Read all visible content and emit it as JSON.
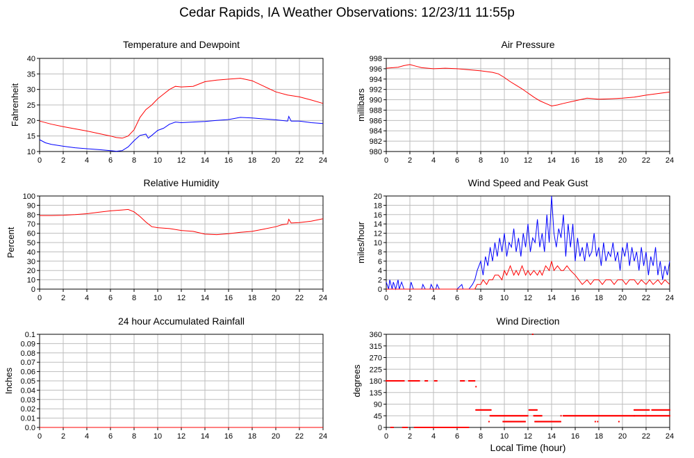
{
  "page": {
    "title": "Cedar Rapids, IA Weather Observations: 12/23/11 11:55p",
    "xlabel_shared": "Local Time (hour)"
  },
  "colors": {
    "red": "#ff0000",
    "blue": "#0000ff",
    "grid": "#bdbdbd",
    "axis": "#000000"
  },
  "chart_data": [
    {
      "id": "temp",
      "type": "line",
      "title": "Temperature and Dewpoint",
      "xlabel": "",
      "ylabel": "Fahrenheit",
      "xlim": [
        0,
        24
      ],
      "ylim": [
        10,
        40
      ],
      "xticks": [
        "0",
        "2",
        "4",
        "6",
        "8",
        "10",
        "12",
        "14",
        "16",
        "18",
        "20",
        "22",
        "24"
      ],
      "yticks": [
        "10",
        "15",
        "20",
        "25",
        "30",
        "35",
        "40"
      ],
      "series": [
        {
          "color": "#ff0000",
          "x": [
            0,
            1,
            2,
            3,
            4,
            5,
            6,
            6.5,
            7,
            7.5,
            8,
            8.5,
            9,
            9.5,
            10,
            10.5,
            11,
            11.5,
            12,
            13,
            14,
            15,
            16,
            17,
            17.5,
            18,
            19,
            20,
            21,
            22,
            23,
            24
          ],
          "y": [
            19.8,
            18.8,
            18,
            17.3,
            16.6,
            15.8,
            15,
            14.5,
            14.3,
            15,
            17,
            21,
            23.5,
            25,
            27,
            28.5,
            30,
            31,
            30.8,
            31,
            32.5,
            33,
            33.3,
            33.6,
            33.2,
            32.8,
            31,
            29.2,
            28.2,
            27.6,
            26.6,
            25.5
          ]
        },
        {
          "color": "#0000ff",
          "x": [
            0,
            0.5,
            1,
            2,
            3,
            4,
            5,
            6,
            6.5,
            7,
            7.5,
            8,
            8.5,
            9,
            9.2,
            9.5,
            10,
            10.5,
            11,
            11.5,
            12,
            13,
            14,
            15,
            16,
            17,
            18,
            19,
            20,
            21,
            21.1,
            21.3,
            22,
            23,
            24
          ],
          "y": [
            13.8,
            12.8,
            12.3,
            11.7,
            11.2,
            10.9,
            10.6,
            10.3,
            10.1,
            10.3,
            11.5,
            13.5,
            15.2,
            15.6,
            14.3,
            15.2,
            16.8,
            17.5,
            18.8,
            19.5,
            19.3,
            19.5,
            19.7,
            20,
            20.3,
            21,
            20.8,
            20.5,
            20.2,
            19.8,
            21.3,
            19.8,
            19.8,
            19.3,
            19
          ]
        }
      ]
    },
    {
      "id": "pressure",
      "type": "line",
      "title": "Air Pressure",
      "xlabel": "",
      "ylabel": "millibars",
      "xlim": [
        0,
        24
      ],
      "ylim": [
        980,
        998
      ],
      "xticks": [
        "0",
        "2",
        "4",
        "6",
        "8",
        "10",
        "12",
        "14",
        "16",
        "18",
        "20",
        "22",
        "24"
      ],
      "yticks": [
        "980",
        "982",
        "984",
        "986",
        "988",
        "990",
        "992",
        "994",
        "996",
        "998"
      ],
      "series": [
        {
          "color": "#ff0000",
          "x": [
            0,
            1,
            1.5,
            2,
            2.5,
            3,
            4,
            5,
            6,
            7,
            8,
            9,
            9.5,
            10,
            10.5,
            11,
            11.5,
            12,
            12.5,
            13,
            13.5,
            14,
            14.5,
            15,
            16,
            17,
            18,
            19,
            20,
            21,
            22,
            23,
            24
          ],
          "y": [
            996.1,
            996.3,
            996.6,
            996.8,
            996.5,
            996.2,
            996,
            996.1,
            996,
            995.8,
            995.6,
            995.3,
            995,
            994.3,
            993.5,
            992.8,
            992.1,
            991.3,
            990.5,
            989.8,
            989.3,
            988.8,
            989,
            989.3,
            989.8,
            990.3,
            990.1,
            990.2,
            990.3,
            990.5,
            990.9,
            991.2,
            991.5
          ]
        }
      ]
    },
    {
      "id": "rh",
      "type": "line",
      "title": "Relative Humidity",
      "xlabel": "",
      "ylabel": "Percent",
      "xlim": [
        0,
        24
      ],
      "ylim": [
        0,
        100
      ],
      "xticks": [
        "0",
        "2",
        "4",
        "6",
        "8",
        "10",
        "12",
        "14",
        "16",
        "18",
        "20",
        "22",
        "24"
      ],
      "yticks": [
        "0",
        "10",
        "20",
        "30",
        "40",
        "50",
        "60",
        "70",
        "80",
        "90",
        "100"
      ],
      "series": [
        {
          "color": "#ff0000",
          "x": [
            0,
            1,
            2,
            3,
            4,
            5,
            6,
            7,
            7.5,
            8,
            8.5,
            9,
            9.5,
            10,
            11,
            12,
            13,
            14,
            15,
            16,
            17,
            18,
            19,
            20,
            20.5,
            21,
            21.1,
            21.3,
            22,
            23,
            24
          ],
          "y": [
            79,
            79,
            79.3,
            80,
            81,
            82.5,
            84,
            85,
            85.5,
            83,
            78,
            72,
            67,
            66,
            65,
            63,
            62,
            59,
            58.5,
            59.5,
            61,
            62,
            64.5,
            67,
            69,
            70,
            75,
            71,
            71.5,
            73,
            75.5
          ]
        }
      ]
    },
    {
      "id": "wind",
      "type": "line",
      "title": "Wind Speed and Peak Gust",
      "xlabel": "",
      "ylabel": "miles/hour",
      "xlim": [
        0,
        24
      ],
      "ylim": [
        0,
        20
      ],
      "xticks": [
        "0",
        "2",
        "4",
        "6",
        "8",
        "10",
        "12",
        "14",
        "16",
        "18",
        "20",
        "22",
        "24"
      ],
      "yticks": [
        "0",
        "2",
        "4",
        "6",
        "8",
        "10",
        "12",
        "14",
        "16",
        "18",
        "20"
      ],
      "series": [
        {
          "color": "#0000ff",
          "x": [
            0,
            0.2,
            0.3,
            0.5,
            0.6,
            0.8,
            1,
            1.1,
            1.3,
            1.5,
            2,
            2.1,
            2.3,
            3,
            3.1,
            3.3,
            3.7,
            3.8,
            4,
            4.2,
            4.3,
            4.5,
            5,
            6,
            6.4,
            6.5,
            6.7,
            7,
            7.3,
            7.5,
            7.7,
            8,
            8.2,
            8.4,
            8.6,
            8.8,
            9,
            9.2,
            9.4,
            9.6,
            9.8,
            10,
            10.2,
            10.4,
            10.6,
            10.8,
            11,
            11.2,
            11.4,
            11.6,
            11.8,
            12,
            12.2,
            12.4,
            12.6,
            12.8,
            13,
            13.2,
            13.4,
            13.6,
            13.8,
            14,
            14.2,
            14.4,
            14.6,
            14.8,
            15,
            15.2,
            15.4,
            15.6,
            15.8,
            16,
            16.2,
            16.4,
            16.6,
            16.8,
            17,
            17.2,
            17.4,
            17.6,
            17.8,
            18,
            18.2,
            18.4,
            18.6,
            18.8,
            19,
            19.2,
            19.4,
            19.6,
            19.8,
            20,
            20.2,
            20.4,
            20.6,
            20.8,
            21,
            21.2,
            21.4,
            21.6,
            21.8,
            22,
            22.2,
            22.4,
            22.6,
            22.8,
            23,
            23.2,
            23.4,
            23.6,
            23.8,
            24
          ],
          "y": [
            1.5,
            0,
            2,
            0,
            1.5,
            0,
            2,
            0,
            1.5,
            0,
            0,
            1.5,
            0,
            0,
            1,
            0,
            0,
            1,
            0,
            0,
            1,
            0,
            0,
            0,
            1,
            0,
            0,
            0,
            1,
            2,
            4,
            6,
            3,
            7,
            5,
            9,
            6,
            10,
            7,
            11,
            8,
            12,
            7,
            10,
            9,
            13,
            8,
            11,
            7,
            12,
            9,
            14,
            8,
            11,
            10,
            15,
            9,
            12,
            8,
            16,
            10,
            20,
            12,
            9,
            13,
            11,
            16,
            7,
            14,
            9,
            14,
            6,
            11,
            7,
            9,
            6,
            10,
            7,
            8,
            12,
            7,
            9,
            5,
            10,
            6,
            8,
            7,
            10,
            6,
            8,
            4,
            9,
            7,
            10,
            5,
            9,
            6,
            8,
            4,
            9,
            5,
            8,
            3,
            7,
            5,
            9,
            3,
            6,
            2,
            5,
            3,
            6
          ]
        },
        {
          "color": "#ff0000",
          "x": [
            0,
            7.5,
            7.7,
            8,
            8.2,
            8.5,
            8.7,
            9,
            9.2,
            9.5,
            9.8,
            10,
            10.2,
            10.5,
            10.8,
            11,
            11.2,
            11.5,
            11.8,
            12,
            12.2,
            12.5,
            12.8,
            13,
            13.2,
            13.5,
            13.8,
            14,
            14.2,
            14.5,
            14.8,
            15,
            15.3,
            15.6,
            16,
            16.3,
            16.6,
            17,
            17.3,
            17.6,
            18,
            18.3,
            18.6,
            19,
            19.3,
            19.6,
            20,
            20.3,
            20.6,
            21,
            21.3,
            21.6,
            22,
            22.3,
            22.6,
            23,
            23.3,
            23.6,
            24
          ],
          "y": [
            0,
            0,
            1,
            1,
            2,
            1,
            2,
            2,
            3,
            3,
            2,
            4,
            3,
            5,
            3,
            4,
            3,
            5,
            3,
            4,
            3,
            4,
            3,
            4,
            3,
            5,
            4,
            6,
            4,
            5,
            4,
            4,
            5,
            4,
            3,
            2,
            1,
            2,
            1,
            2,
            2,
            1,
            2,
            2,
            1,
            2,
            2,
            1,
            2,
            2,
            1,
            2,
            1,
            2,
            1,
            2,
            1,
            2,
            1
          ]
        }
      ]
    },
    {
      "id": "rain",
      "type": "line",
      "title": "24 hour Accumulated Rainfall",
      "xlabel": "",
      "ylabel": "Inches",
      "xlim": [
        0,
        24
      ],
      "ylim": [
        0,
        0.1
      ],
      "xticks": [
        "0",
        "2",
        "4",
        "6",
        "8",
        "10",
        "12",
        "14",
        "16",
        "18",
        "20",
        "22",
        "24"
      ],
      "yticks": [
        "0.0",
        "0.01",
        "0.02",
        "0.03",
        "0.04",
        "0.05",
        "0.06",
        "0.07",
        "0.08",
        "0.09",
        "0.1"
      ],
      "series": [
        {
          "color": "#ff0000",
          "x": [
            0,
            24
          ],
          "y": [
            0,
            0
          ]
        }
      ]
    },
    {
      "id": "dir",
      "type": "scatter",
      "title": "Wind Direction",
      "xlabel": "Local Time (hour)",
      "ylabel": "degrees",
      "xlim": [
        0,
        24
      ],
      "ylim": [
        0,
        360
      ],
      "xticks": [
        "0",
        "2",
        "4",
        "6",
        "8",
        "10",
        "12",
        "14",
        "16",
        "18",
        "20",
        "22",
        "24"
      ],
      "yticks": [
        "0",
        "45",
        "90",
        "135",
        "180",
        "225",
        "270",
        "315",
        "360"
      ],
      "segments": [
        {
          "y": 180,
          "x1": 0,
          "x2": 1.5
        },
        {
          "y": 180,
          "x1": 1.9,
          "x2": 2.8
        },
        {
          "y": 180,
          "x1": 3.3,
          "x2": 3.5
        },
        {
          "y": 180,
          "x1": 4.1,
          "x2": 4.3
        },
        {
          "y": 180,
          "x1": 6.3,
          "x2": 6.6
        },
        {
          "y": 180,
          "x1": 7.0,
          "x2": 7.5
        },
        {
          "y": 0,
          "x1": 0.4,
          "x2": 0.6
        },
        {
          "y": 0,
          "x1": 1.4,
          "x2": 1.8
        },
        {
          "y": 0,
          "x1": 2.4,
          "x2": 7.0
        },
        {
          "y": 67.5,
          "x1": 7.6,
          "x2": 8.9
        },
        {
          "y": 45,
          "x1": 8.8,
          "x2": 12.0
        },
        {
          "y": 45,
          "x1": 12.5,
          "x2": 13.2
        },
        {
          "y": 45,
          "x1": 15.0,
          "x2": 21.0
        },
        {
          "y": 45,
          "x1": 21.0,
          "x2": 24.0
        },
        {
          "y": 22.5,
          "x1": 9.9,
          "x2": 11.8
        },
        {
          "y": 22.5,
          "x1": 12.6,
          "x2": 14.8
        },
        {
          "y": 67.5,
          "x1": 12.1,
          "x2": 12.8
        },
        {
          "y": 67.5,
          "x1": 21.0,
          "x2": 22.3
        },
        {
          "y": 67.5,
          "x1": 22.5,
          "x2": 24.0
        }
      ],
      "points": [
        {
          "x": 7.6,
          "y": 157.5
        },
        {
          "x": 12.4,
          "y": 360
        },
        {
          "x": 8.7,
          "y": 22.5
        },
        {
          "x": 14.8,
          "y": 45
        },
        {
          "x": 17.7,
          "y": 22.5
        },
        {
          "x": 17.9,
          "y": 22.5
        },
        {
          "x": 19.7,
          "y": 22.5
        }
      ]
    }
  ]
}
